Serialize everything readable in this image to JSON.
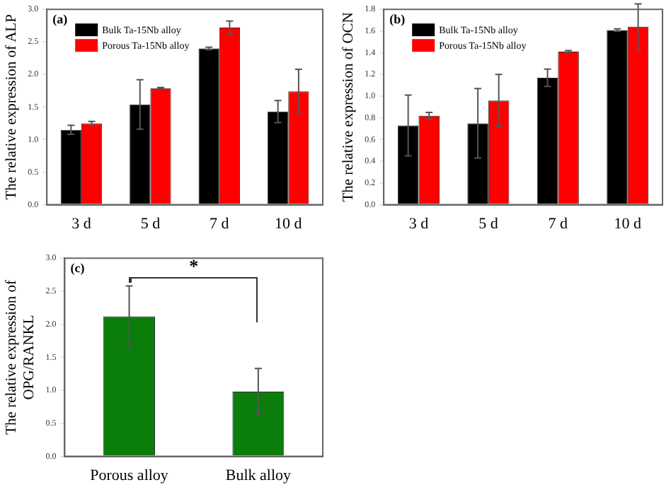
{
  "chart_data": [
    {
      "type": "bar",
      "ylabel": "The relative expression of ALP",
      "annotations": [
        "(a)"
      ],
      "categories": [
        "3 d",
        "5 d",
        "7 d",
        "10 d"
      ],
      "series": [
        {
          "name": "Bulk Ta-15Nb alloy",
          "color": "#000000",
          "values": [
            1.15,
            1.54,
            2.4,
            1.43
          ],
          "errors": [
            0.07,
            0.38,
            0.02,
            0.17
          ]
        },
        {
          "name": "Porous Ta-15Nb alloy",
          "color": "#ff0000",
          "values": [
            1.25,
            1.79,
            2.72,
            1.74
          ],
          "errors": [
            0.03,
            0.01,
            0.1,
            0.34
          ]
        }
      ],
      "ylim": [
        0,
        3.0
      ],
      "yticks": [
        {
          "value": 0,
          "label": "0.0"
        },
        0.5,
        {
          "value": 1,
          "label": "1.0"
        },
        1.5,
        {
          "value": 2,
          "label": "2.0"
        },
        2.5,
        {
          "value": 3,
          "label": "3.0"
        }
      ],
      "legend": "top left",
      "grid": false
    },
    {
      "type": "bar",
      "ylabel": "The relative expression of OCN",
      "annotations": [
        "(b)"
      ],
      "categories": [
        "3 d",
        "5 d",
        "7 d",
        "10 d"
      ],
      "series": [
        {
          "name": "Bulk Ta-15Nb alloy",
          "color": "#000000",
          "values": [
            0.73,
            0.75,
            1.17,
            1.61
          ],
          "errors": [
            0.28,
            0.32,
            0.08,
            0.01
          ]
        },
        {
          "name": "Porous Ta-15Nb alloy",
          "color": "#ff0000",
          "values": [
            0.82,
            0.96,
            1.41,
            1.64
          ],
          "errors": [
            0.03,
            0.24,
            0.01,
            0.21
          ]
        }
      ],
      "ylim": [
        0,
        1.8
      ],
      "yticks": [
        {
          "value": 0,
          "label": "0.0"
        },
        0.2,
        0.4,
        0.6,
        0.8,
        {
          "value": 1,
          "label": "1.0"
        },
        1.2,
        1.4,
        1.6,
        1.8
      ],
      "legend": "top left",
      "grid": false
    },
    {
      "type": "bar",
      "ylabel": "The relative expression of OPG/RANKL",
      "annotations": [
        "(c)",
        "*"
      ],
      "categories": [
        "Porous alloy",
        "Bulk alloy"
      ],
      "series": [
        {
          "color": "#0a7d0a",
          "values": [
            2.12,
            0.98
          ],
          "errors": [
            0.46,
            0.35
          ]
        }
      ],
      "ylim": [
        0,
        3.0
      ],
      "yticks": [
        {
          "value": 0,
          "label": "0.0"
        },
        0.5,
        {
          "value": 1,
          "label": "1.0"
        },
        1.5,
        {
          "value": 2,
          "label": "2.0"
        },
        2.5,
        {
          "value": 3,
          "label": "3.0"
        }
      ],
      "grid": false
    }
  ]
}
